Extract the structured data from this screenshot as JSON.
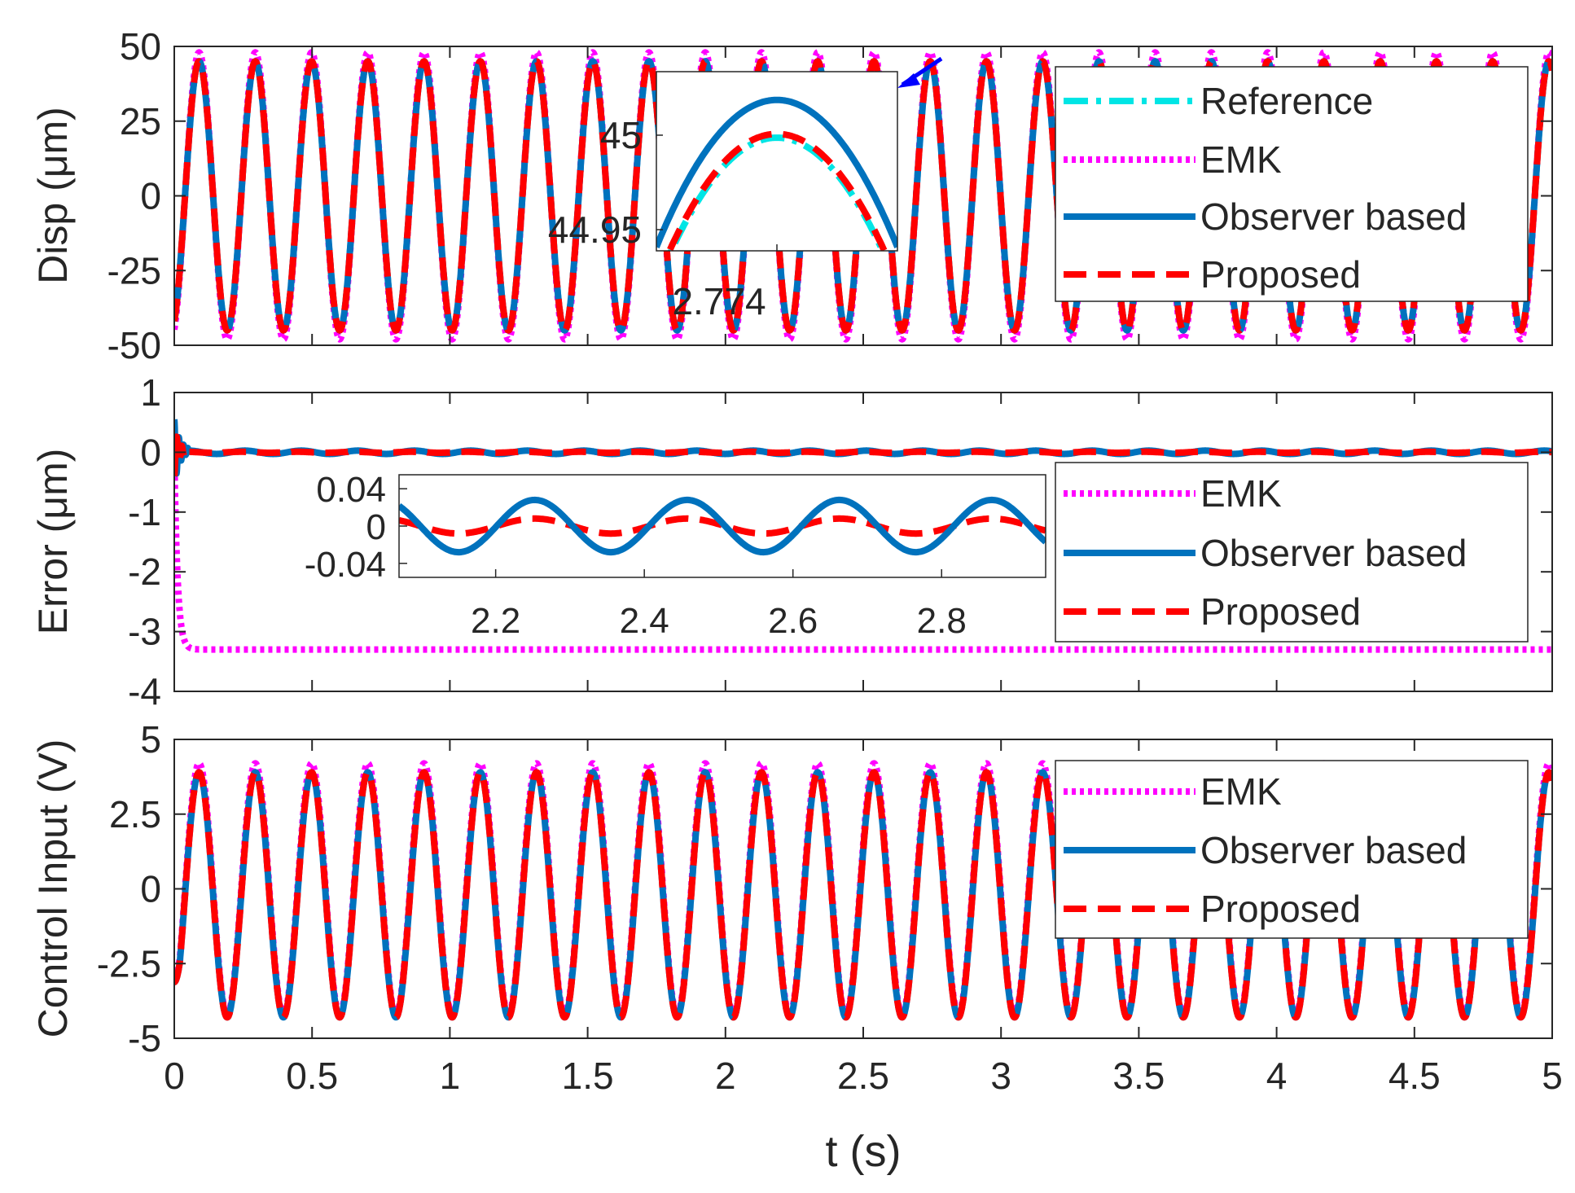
{
  "chart_data": [
    {
      "id": "disp",
      "type": "line",
      "ylabel": "Disp (μm)",
      "xlim": [
        0,
        5
      ],
      "ylim": [
        -50,
        50
      ],
      "yticks": [
        50,
        25,
        0,
        -25,
        -50
      ],
      "ytick_labels": [
        "50",
        "25",
        "0",
        "-25",
        "-50"
      ],
      "legend": [
        "Reference",
        "EMK",
        "Observer based",
        "Proposed"
      ],
      "signal": {
        "frequency_hz": 4.9,
        "amplitude_um": 45
      },
      "series": [
        {
          "name": "Reference",
          "color": "#00e5e5",
          "style": "dashdot",
          "amplitude": 45
        },
        {
          "name": "EMK",
          "color": "#ff00ff",
          "style": "dotted",
          "amplitude": 48
        },
        {
          "name": "Observer based",
          "color": "#0072bd",
          "style": "solid",
          "amplitude": 45.02
        },
        {
          "name": "Proposed",
          "color": "#ff0000",
          "style": "dashed",
          "amplitude": 45.002
        }
      ],
      "inset": {
        "xtick_label": "2.774",
        "ytick_labels": [
          "45",
          "44.95"
        ],
        "peaks": {
          "Reference": 45.0,
          "Observer based": 45.02,
          "Proposed": 45.002
        }
      }
    },
    {
      "id": "error",
      "type": "line",
      "ylabel": "Error (μm)",
      "xlim": [
        0,
        5
      ],
      "ylim": [
        -4,
        1
      ],
      "yticks": [
        1,
        0,
        -1,
        -2,
        -3,
        -4
      ],
      "ytick_labels": [
        "1",
        "0",
        "-1",
        "-2",
        "-3",
        "-4"
      ],
      "legend": [
        "EMK",
        "Observer based",
        "Proposed"
      ],
      "series": [
        {
          "name": "EMK",
          "color": "#ff00ff",
          "style": "dotted",
          "steady_state": -3.3
        },
        {
          "name": "Observer based",
          "color": "#0072bd",
          "style": "solid",
          "amplitude": 0.028
        },
        {
          "name": "Proposed",
          "color": "#ff0000",
          "style": "dashed",
          "amplitude": 0.008
        }
      ],
      "inset": {
        "xlim": [
          2.07,
          2.94
        ],
        "ylim": [
          -0.055,
          0.055
        ],
        "xticks": [
          2.2,
          2.4,
          2.6,
          2.8
        ],
        "xtick_labels": [
          "2.2",
          "2.4",
          "2.6",
          "2.8"
        ],
        "yticks": [
          0.04,
          0,
          -0.04
        ],
        "ytick_labels": [
          "0.04",
          "0",
          "-0.04"
        ],
        "oscillation_period_s": 0.205
      }
    },
    {
      "id": "control",
      "type": "line",
      "ylabel": "Control Input (V)",
      "xlabel": "t (s)",
      "xlim": [
        0,
        5
      ],
      "ylim": [
        -5,
        5
      ],
      "yticks": [
        5,
        2.5,
        0,
        -2.5,
        -5
      ],
      "ytick_labels": [
        "5",
        "2.5",
        "0",
        "-2.5",
        "-5"
      ],
      "xticks": [
        0,
        0.5,
        1,
        1.5,
        2,
        2.5,
        3,
        3.5,
        4,
        4.5,
        5
      ],
      "xtick_labels": [
        "0",
        "0.5",
        "1",
        "1.5",
        "2",
        "2.5",
        "3",
        "3.5",
        "4",
        "4.5",
        "5"
      ],
      "legend": [
        "EMK",
        "Observer based",
        "Proposed"
      ],
      "series": [
        {
          "name": "EMK",
          "color": "#ff00ff",
          "style": "dotted",
          "amplitude": 4.2,
          "offset": 0
        },
        {
          "name": "Observer based",
          "color": "#0072bd",
          "style": "solid",
          "amplitude": 4.1,
          "offset": -0.2
        },
        {
          "name": "Proposed",
          "color": "#ff0000",
          "style": "dashed",
          "amplitude": 4.1,
          "offset": -0.2
        }
      ]
    }
  ]
}
